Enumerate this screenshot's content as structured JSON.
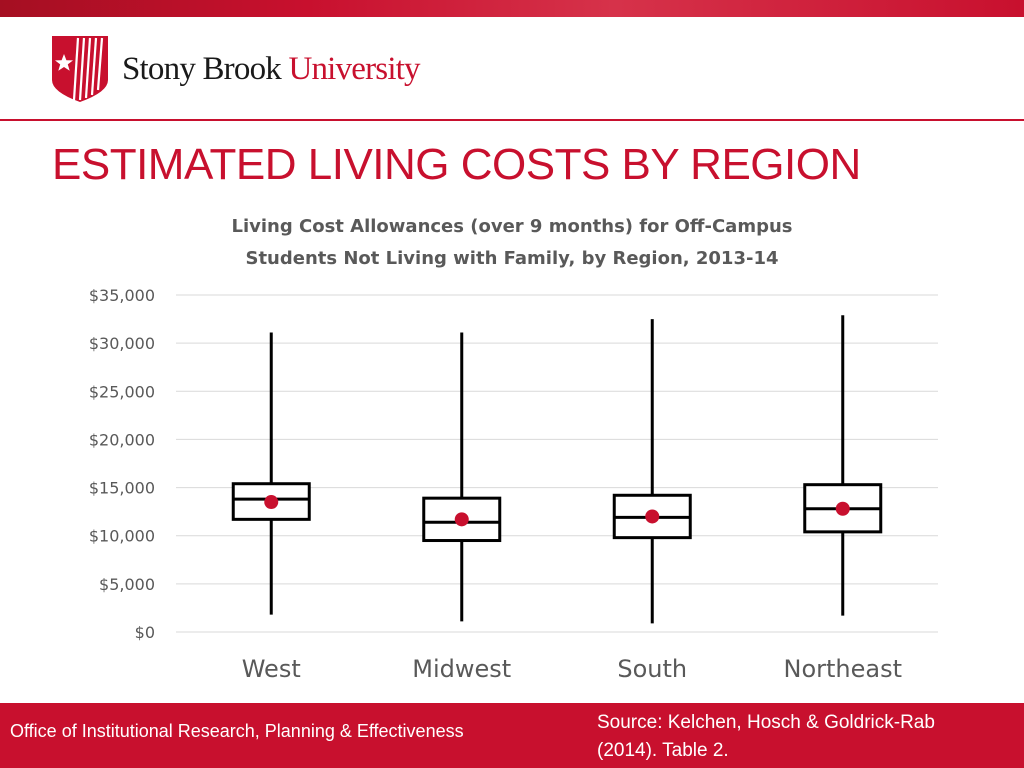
{
  "header": {
    "logo_word1": "Stony Brook",
    "logo_word2": "University",
    "title": "ESTIMATED LIVING COSTS BY REGION",
    "colors": {
      "brand_red": "#c8102e"
    },
    "logo_icon": "star-shield-icon"
  },
  "chart_data": {
    "type": "box",
    "title_line1": "Living Cost Allowances (over 9 months) for Off-Campus",
    "title_line2": "Students Not Living with Family, by Region, 2013-14",
    "categories": [
      "West",
      "Midwest",
      "South",
      "Northeast"
    ],
    "ylim": [
      0,
      35000
    ],
    "y_ticks": [
      0,
      5000,
      10000,
      15000,
      20000,
      25000,
      30000,
      35000
    ],
    "y_tick_labels": [
      "$0",
      "$5,000",
      "$10,000",
      "$15,000",
      "$20,000",
      "$25,000",
      "$30,000",
      "$35,000"
    ],
    "grid": true,
    "boxes": [
      {
        "min": 1800,
        "q1": 11700,
        "median": 13800,
        "q3": 15400,
        "max": 31100,
        "mean": 13500
      },
      {
        "min": 1100,
        "q1": 9500,
        "median": 11400,
        "q3": 13900,
        "max": 31100,
        "mean": 11700
      },
      {
        "min": 900,
        "q1": 9800,
        "median": 11900,
        "q3": 14200,
        "max": 32500,
        "mean": 12000
      },
      {
        "min": 1700,
        "q1": 10400,
        "median": 12800,
        "q3": 15300,
        "max": 32900,
        "mean": 12800
      }
    ],
    "colors": {
      "box": "#000000",
      "mean_marker": "#c8102e",
      "grid": "#d9d9d9"
    }
  },
  "footer": {
    "left": "Office of Institutional Research, Planning & Effectiveness",
    "right_line1": "Source: Kelchen, Hosch & Goldrick-Rab",
    "right_line2": "(2014). Table 2."
  }
}
